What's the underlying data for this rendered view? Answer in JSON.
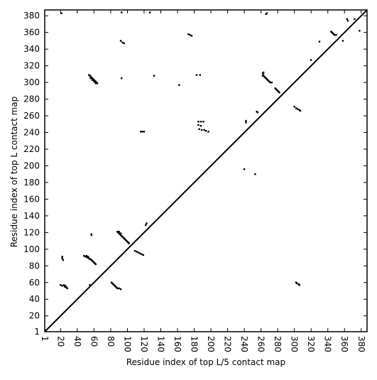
{
  "chart_data": {
    "type": "scatter",
    "xlabel": "Residue index of top L/5 contact map",
    "ylabel": "Residue index of top L contact map",
    "xlim": [
      1,
      387
    ],
    "ylim": [
      1,
      387
    ],
    "xticks": [
      1,
      20,
      40,
      60,
      80,
      100,
      120,
      140,
      160,
      180,
      200,
      220,
      240,
      260,
      280,
      300,
      320,
      340,
      360,
      380
    ],
    "yticks": [
      1,
      20,
      40,
      60,
      80,
      100,
      120,
      140,
      160,
      180,
      200,
      220,
      240,
      260,
      280,
      300,
      320,
      340,
      360,
      380
    ],
    "color": "#000000",
    "x": [
      54,
      55,
      56,
      57,
      58,
      59,
      60,
      61,
      62,
      63,
      64,
      56,
      58,
      60,
      62,
      92,
      94,
      96,
      93,
      132,
      173,
      175,
      177,
      162,
      183,
      187,
      116,
      118,
      120,
      185,
      188,
      191,
      185,
      188,
      186,
      189,
      192,
      194,
      197,
      242,
      242,
      255,
      256,
      253,
      240,
      262,
      263,
      264,
      265,
      266,
      267,
      268,
      269,
      270,
      271,
      273,
      263,
      262,
      277,
      278,
      279,
      280,
      281,
      282,
      300,
      302,
      304,
      306,
      307,
      344,
      345,
      346,
      347,
      348,
      350,
      358,
      320,
      330,
      363,
      364,
      372,
      378,
      267,
      266,
      93,
      21,
      127,
      88,
      89,
      90,
      91,
      92,
      93,
      94,
      95,
      96,
      97,
      98,
      99,
      100,
      101,
      102,
      90,
      92,
      48,
      50,
      52,
      54,
      55,
      56,
      57,
      58,
      59,
      60,
      61,
      62,
      51,
      53,
      22,
      22,
      23,
      57,
      57,
      109,
      111,
      113,
      115,
      117,
      119,
      123,
      122,
      20,
      22,
      24,
      26,
      25,
      27,
      28,
      81,
      82,
      83,
      84,
      85,
      86,
      87,
      88,
      90,
      92,
      302,
      303,
      305,
      306,
      55
    ],
    "values": [
      309,
      308,
      307,
      306,
      305,
      304,
      303,
      302,
      301,
      300,
      299,
      305,
      303,
      301,
      299,
      350,
      348,
      347,
      305,
      308,
      358,
      357,
      356,
      297,
      309,
      309,
      241,
      241,
      241,
      253,
      253,
      253,
      249,
      248,
      244,
      243,
      243,
      242,
      241,
      252,
      254,
      265,
      264,
      190,
      196,
      311,
      309,
      307,
      306,
      305,
      304,
      303,
      302,
      301,
      300,
      300,
      312,
      308,
      293,
      292,
      291,
      290,
      289,
      288,
      271,
      269,
      268,
      267,
      266,
      361,
      360,
      359,
      358,
      357,
      357,
      350,
      327,
      349,
      376,
      374,
      376,
      362,
      383,
      382,
      384,
      383,
      384,
      121,
      120,
      119,
      118,
      117,
      116,
      115,
      114,
      113,
      112,
      111,
      110,
      109,
      108,
      107,
      121,
      119,
      92,
      91,
      90,
      89,
      88,
      88,
      87,
      86,
      85,
      84,
      83,
      82,
      92,
      91,
      91,
      89,
      87,
      118,
      117,
      98,
      97,
      96,
      95,
      94,
      93,
      131,
      129,
      57,
      56,
      57,
      56,
      55,
      54,
      53,
      60,
      59,
      58,
      57,
      56,
      55,
      54,
      53,
      53,
      52,
      60,
      59,
      58,
      57,
      57
    ]
  }
}
